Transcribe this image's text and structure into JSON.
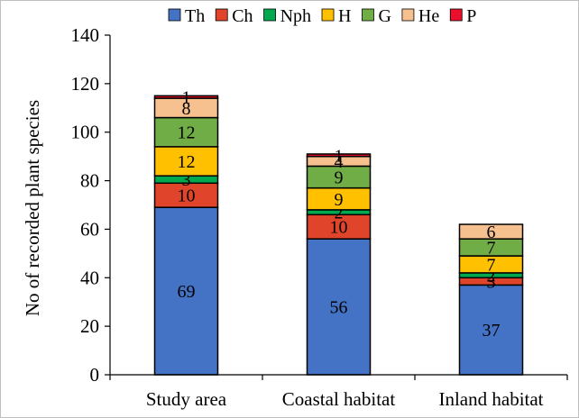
{
  "chart_data": {
    "type": "bar",
    "stacked": true,
    "title": "",
    "xlabel": "",
    "ylabel": "No of recorded plant species",
    "ylim": [
      0,
      140
    ],
    "yticks": [
      0,
      20,
      40,
      60,
      80,
      100,
      120,
      140
    ],
    "grid": false,
    "legend_position": "top",
    "categories": [
      "Study area",
      "Coastal habitat",
      "Inland habitat"
    ],
    "series": [
      {
        "name": "Th",
        "color": "#4472C4",
        "values": [
          69,
          56,
          37
        ],
        "labels": [
          "69",
          "56",
          "37"
        ]
      },
      {
        "name": "Ch",
        "color": "#E0442A",
        "values": [
          10,
          10,
          3
        ],
        "labels": [
          "10",
          "10",
          "3"
        ]
      },
      {
        "name": "Nph",
        "color": "#00A94F",
        "values": [
          3,
          2,
          2
        ],
        "labels": [
          "3",
          "2",
          "2"
        ]
      },
      {
        "name": "H",
        "color": "#FFC000",
        "values": [
          12,
          9,
          7
        ],
        "labels": [
          "12",
          "9",
          "7"
        ]
      },
      {
        "name": "G",
        "color": "#70AD47",
        "values": [
          12,
          9,
          7
        ],
        "labels": [
          "12",
          "9",
          "7"
        ]
      },
      {
        "name": "He",
        "color": "#F7C08F",
        "values": [
          8,
          4,
          6
        ],
        "labels": [
          "8",
          "4",
          "6"
        ]
      },
      {
        "name": "P",
        "color": "#E8102A",
        "values": [
          1,
          1,
          0
        ],
        "labels": [
          "1",
          "1",
          ""
        ]
      }
    ]
  }
}
